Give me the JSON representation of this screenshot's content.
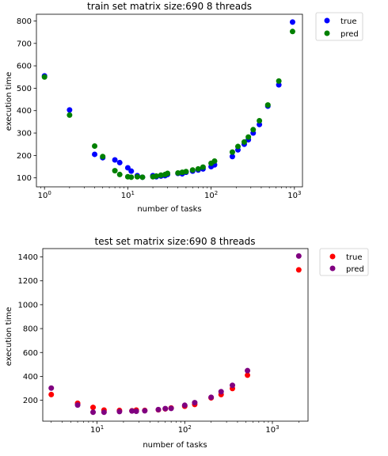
{
  "chart_data": [
    {
      "type": "scatter",
      "title": "train set    matrix size:690  8 threads",
      "xlabel": "number of tasks",
      "ylabel": "execution time",
      "xscale": "log",
      "xlim": [
        0.8,
        1250
      ],
      "ylim": [
        60,
        830
      ],
      "xticks": [
        1,
        10,
        100,
        1000
      ],
      "xtick_labels": [
        {
          "base": "10",
          "exp": "0"
        },
        {
          "base": "10",
          "exp": "1"
        },
        {
          "base": "10",
          "exp": "2"
        },
        {
          "base": "10",
          "exp": "3"
        }
      ],
      "yticks": [
        100,
        200,
        300,
        400,
        500,
        600,
        700,
        800
      ],
      "ytick_labels": [
        "100",
        "200",
        "300",
        "400",
        "500",
        "600",
        "700",
        "800"
      ],
      "grid": false,
      "legend_position": "outside-top-right",
      "series": [
        {
          "name": "true",
          "color": "#0000ff",
          "points": [
            [
              1,
              555
            ],
            [
              2,
              403
            ],
            [
              4,
              205
            ],
            [
              5,
              190
            ],
            [
              7,
              180
            ],
            [
              8,
              168
            ],
            [
              10,
              145
            ],
            [
              11,
              130
            ],
            [
              13,
              110
            ],
            [
              15,
              103
            ],
            [
              20,
              110
            ],
            [
              22,
              105
            ],
            [
              25,
              108
            ],
            [
              28,
              110
            ],
            [
              30,
              115
            ],
            [
              40,
              120
            ],
            [
              45,
              118
            ],
            [
              50,
              125
            ],
            [
              60,
              130
            ],
            [
              70,
              135
            ],
            [
              80,
              140
            ],
            [
              100,
              150
            ],
            [
              110,
              158
            ],
            [
              180,
              195
            ],
            [
              210,
              225
            ],
            [
              250,
              250
            ],
            [
              280,
              270
            ],
            [
              320,
              300
            ],
            [
              380,
              338
            ],
            [
              480,
              420
            ],
            [
              650,
              515
            ],
            [
              950,
              795
            ]
          ]
        },
        {
          "name": "pred",
          "color": "#008000",
          "points": [
            [
              1,
              550
            ],
            [
              2,
              380
            ],
            [
              4,
              242
            ],
            [
              5,
              195
            ],
            [
              7,
              132
            ],
            [
              8,
              115
            ],
            [
              10,
              105
            ],
            [
              11,
              103
            ],
            [
              13,
              105
            ],
            [
              15,
              103
            ],
            [
              20,
              105
            ],
            [
              22,
              108
            ],
            [
              25,
              112
            ],
            [
              28,
              115
            ],
            [
              30,
              120
            ],
            [
              40,
              122
            ],
            [
              45,
              125
            ],
            [
              50,
              128
            ],
            [
              60,
              135
            ],
            [
              70,
              140
            ],
            [
              80,
              148
            ],
            [
              100,
              165
            ],
            [
              110,
              175
            ],
            [
              180,
              215
            ],
            [
              210,
              240
            ],
            [
              250,
              260
            ],
            [
              280,
              282
            ],
            [
              320,
              315
            ],
            [
              380,
              355
            ],
            [
              480,
              425
            ],
            [
              650,
              532
            ],
            [
              950,
              753
            ]
          ]
        }
      ]
    },
    {
      "type": "scatter",
      "title": "test set  matrix size:690  8 threads",
      "xlabel": "number of tasks",
      "ylabel": "execution time",
      "xscale": "log",
      "xlim": [
        2.4,
        2550
      ],
      "ylim": [
        25,
        1470
      ],
      "xticks": [
        10,
        100,
        1000
      ],
      "xtick_labels": [
        {
          "base": "10",
          "exp": "1"
        },
        {
          "base": "10",
          "exp": "2"
        },
        {
          "base": "10",
          "exp": "3"
        }
      ],
      "yticks": [
        200,
        400,
        600,
        800,
        1000,
        1200,
        1400
      ],
      "ytick_labels": [
        "200",
        "400",
        "600",
        "800",
        "1000",
        "1200",
        "1400"
      ],
      "grid": false,
      "legend_position": "outside-top-right",
      "series": [
        {
          "name": "true",
          "color": "#ff0000",
          "points": [
            [
              3,
              248
            ],
            [
              6,
              175
            ],
            [
              9,
              140
            ],
            [
              12,
              118
            ],
            [
              18,
              115
            ],
            [
              25,
              112
            ],
            [
              28,
              118
            ],
            [
              35,
              115
            ],
            [
              50,
              120
            ],
            [
              60,
              128
            ],
            [
              70,
              135
            ],
            [
              100,
              150
            ],
            [
              130,
              165
            ],
            [
              200,
              220
            ],
            [
              260,
              248
            ],
            [
              350,
              298
            ],
            [
              520,
              410
            ],
            [
              2000,
              1292
            ]
          ]
        },
        {
          "name": "pred",
          "color": "#800080",
          "points": [
            [
              3,
              302
            ],
            [
              6,
              160
            ],
            [
              9,
              100
            ],
            [
              12,
              100
            ],
            [
              18,
              105
            ],
            [
              25,
              110
            ],
            [
              28,
              108
            ],
            [
              35,
              112
            ],
            [
              50,
              122
            ],
            [
              60,
              130
            ],
            [
              70,
              132
            ],
            [
              100,
              158
            ],
            [
              130,
              180
            ],
            [
              200,
              225
            ],
            [
              260,
              272
            ],
            [
              350,
              325
            ],
            [
              520,
              448
            ],
            [
              2000,
              1408
            ]
          ]
        }
      ]
    }
  ]
}
